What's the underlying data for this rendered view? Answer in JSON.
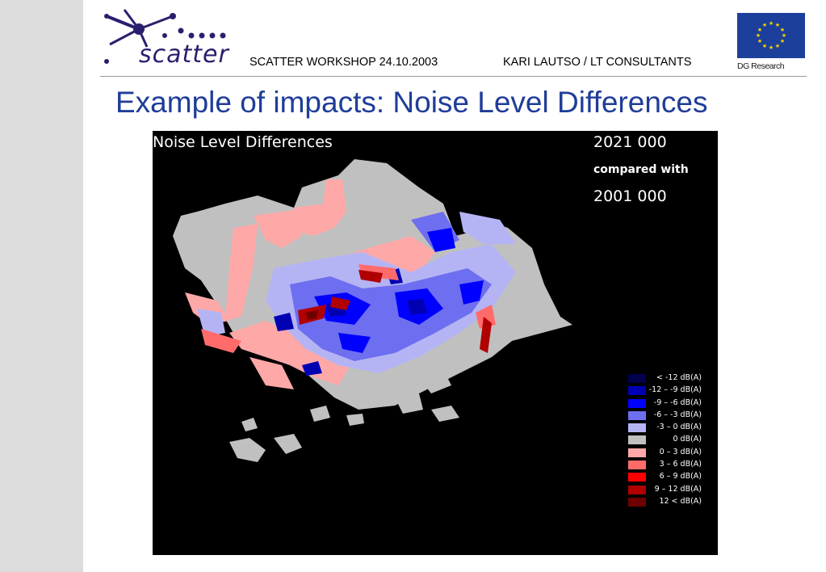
{
  "header": {
    "logo_text": "scatter",
    "workshop": "SCATTER  WORKSHOP  24.10.2003",
    "author": "KARI LAUTSO / LT CONSULTANTS",
    "eu_label": "DG Research"
  },
  "slide": {
    "title": "Example of impacts: Noise Level Differences"
  },
  "map": {
    "title": "Noise Level Differences",
    "scenario": "2021 000",
    "compared_label": "compared with",
    "baseline": "2001 000",
    "legend": [
      {
        "color": "#00004d",
        "label": "< -12 dB(A)"
      },
      {
        "color": "#0000b3",
        "label": "-12 – -9 dB(A)"
      },
      {
        "color": "#0000ff",
        "label": "-9 – -6 dB(A)"
      },
      {
        "color": "#6e6ef0",
        "label": "-6 – -3 dB(A)"
      },
      {
        "color": "#b4b4f5",
        "label": "-3 –  0 dB(A)"
      },
      {
        "color": "#c0c0c0",
        "label": "0       dB(A)"
      },
      {
        "color": "#ffa8a8",
        "label": "0 –  3 dB(A)"
      },
      {
        "color": "#ff6b6b",
        "label": "3 –  6 dB(A)"
      },
      {
        "color": "#ff0000",
        "label": "6 –  9 dB(A)"
      },
      {
        "color": "#b00000",
        "label": "9 – 12 dB(A)"
      },
      {
        "color": "#6e0000",
        "label": "12 <     dB(A)"
      }
    ]
  }
}
